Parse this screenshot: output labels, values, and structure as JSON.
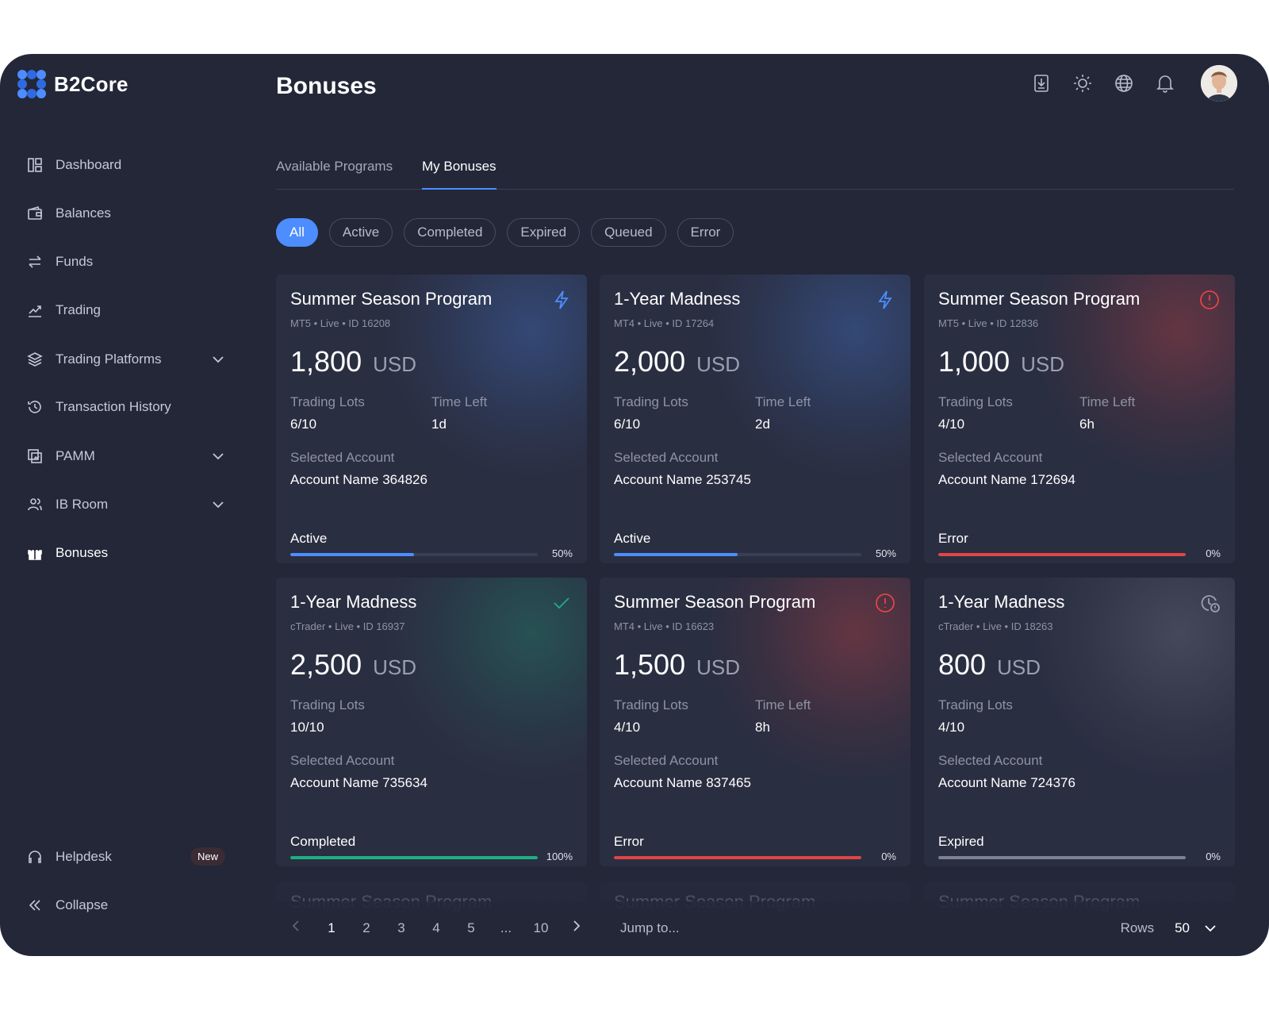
{
  "brand": {
    "name": "B2Core"
  },
  "header": {
    "title": "Bonuses"
  },
  "sidebar": {
    "items": [
      {
        "label": "Dashboard",
        "icon": "dashboard-icon"
      },
      {
        "label": "Balances",
        "icon": "wallet-icon"
      },
      {
        "label": "Funds",
        "icon": "transfer-icon"
      },
      {
        "label": "Trading",
        "icon": "chart-line-icon"
      },
      {
        "label": "Trading Platforms",
        "icon": "layers-icon",
        "expandable": true
      },
      {
        "label": "Transaction History",
        "icon": "history-icon"
      },
      {
        "label": "PAMM",
        "icon": "pamm-icon",
        "expandable": true
      },
      {
        "label": "IB Room",
        "icon": "users-icon",
        "expandable": true
      },
      {
        "label": "Bonuses",
        "icon": "gift-icon",
        "active": true
      }
    ],
    "helpdesk": {
      "label": "Helpdesk",
      "badge": "New"
    },
    "collapse": {
      "label": "Collapse"
    }
  },
  "tabs": [
    {
      "label": "Available Programs",
      "active": false
    },
    {
      "label": "My Bonuses",
      "active": true
    }
  ],
  "filters": [
    "All",
    "Active",
    "Completed",
    "Expired",
    "Queued",
    "Error"
  ],
  "active_filter": "All",
  "labels": {
    "trading_lots": "Trading Lots",
    "time_left": "Time Left",
    "selected_account": "Selected Account"
  },
  "cards": [
    {
      "title": "Summer Season Program",
      "meta": "MT5 • Live • ID 16208",
      "amount": "1,800",
      "currency": "USD",
      "lots": "6/10",
      "time_left": "1d",
      "account": "Account Name 364826",
      "status": "Active",
      "progress": 0.5,
      "progress_label": "50%",
      "icon": "lightning-icon",
      "accent": "#4d8dff"
    },
    {
      "title": "1-Year Madness",
      "meta": "MT4 • Live • ID 17264",
      "amount": "2,000",
      "currency": "USD",
      "lots": "6/10",
      "time_left": "2d",
      "account": "Account Name 253745",
      "status": "Active",
      "progress": 0.5,
      "progress_label": "50%",
      "icon": "lightning-icon",
      "accent": "#4d8dff"
    },
    {
      "title": "Summer Season Program",
      "meta": "MT5 • Live • ID 12836",
      "amount": "1,000",
      "currency": "USD",
      "lots": "4/10",
      "time_left": "6h",
      "account": "Account Name 172694",
      "status": "Error",
      "progress": 0,
      "progress_label": "0%",
      "icon": "alert-icon",
      "accent": "#e04545"
    },
    {
      "title": "1-Year Madness",
      "meta": "cTrader • Live • ID 16937",
      "amount": "2,500",
      "currency": "USD",
      "lots": "10/10",
      "time_left": "",
      "account": "Account Name 735634",
      "status": "Completed",
      "progress": 1,
      "progress_label": "100%",
      "icon": "check-icon",
      "accent": "#1fae84"
    },
    {
      "title": "Summer Season Program",
      "meta": "MT4 • Live • ID 16623",
      "amount": "1,500",
      "currency": "USD",
      "lots": "4/10",
      "time_left": "8h",
      "account": "Account Name 837465",
      "status": "Error",
      "progress": 0,
      "progress_label": "0%",
      "icon": "alert-icon",
      "accent": "#e04545"
    },
    {
      "title": "1-Year Madness",
      "meta": "cTrader • Live • ID 18263",
      "amount": "800",
      "currency": "USD",
      "lots": "4/10",
      "time_left": "",
      "account": "Account Name 724376",
      "status": "Expired",
      "progress": 0,
      "progress_label": "0%",
      "icon": "clock-alert-icon",
      "accent": "#8a8f9e"
    }
  ],
  "ghost_cards": [
    {
      "title": "Summer Season Program"
    },
    {
      "title": "Summer Season Program"
    },
    {
      "title": "Summer Season Program"
    }
  ],
  "pagination": {
    "pages": [
      "1",
      "2",
      "3",
      "4",
      "5",
      "...",
      "10"
    ],
    "current": "1",
    "jump_placeholder": "Jump to...",
    "rows_label": "Rows",
    "rows_value": "50"
  }
}
